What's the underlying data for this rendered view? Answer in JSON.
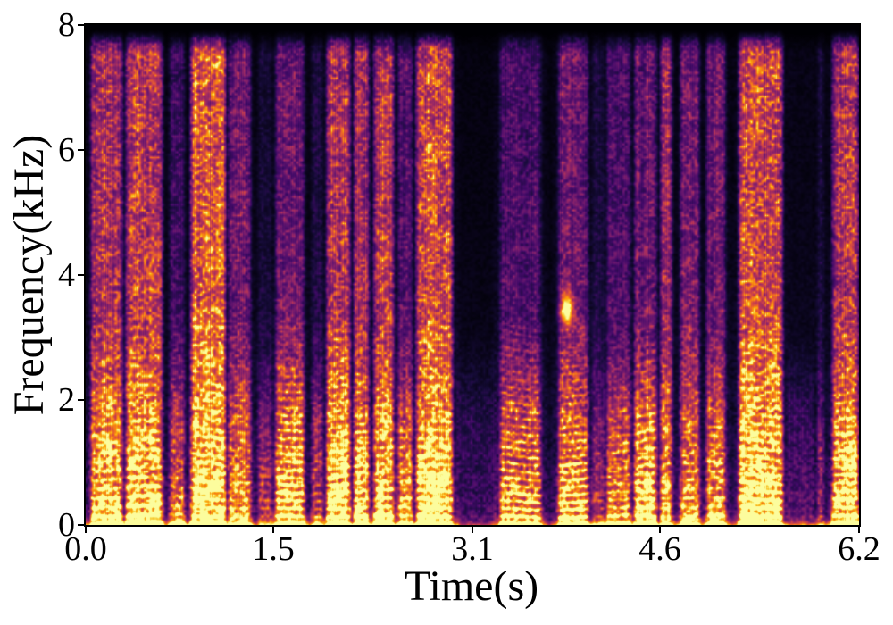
{
  "figure": {
    "xlabel": "Time(s)",
    "ylabel": "Frequency(kHz)",
    "x_tick_labels": [
      "0.0",
      "1.5",
      "3.1",
      "4.6",
      "6.2"
    ],
    "y_tick_labels": [
      "8",
      "6",
      "4",
      "2",
      "0"
    ],
    "axis_color": "#000000",
    "background_color": "#ffffff"
  },
  "chart_data": {
    "type": "heatmap",
    "subtype": "speech-spectrogram",
    "title": "",
    "xlabel": "Time(s)",
    "ylabel": "Frequency(kHz)",
    "xlim": [
      0.0,
      6.2
    ],
    "ylim": [
      0,
      8
    ],
    "x_ticks": [
      0.0,
      1.5,
      3.1,
      4.6,
      6.2
    ],
    "y_ticks": [
      0,
      2,
      4,
      6,
      8
    ],
    "grid": false,
    "legend": null,
    "colormap": "inferno",
    "colormap_stops": [
      [
        0,
        0,
        4
      ],
      [
        22,
        11,
        57
      ],
      [
        66,
        10,
        104
      ],
      [
        106,
        23,
        110
      ],
      [
        147,
        38,
        103
      ],
      [
        188,
        55,
        84
      ],
      [
        221,
        81,
        58
      ],
      [
        243,
        120,
        25
      ],
      [
        252,
        165,
        10
      ],
      [
        246,
        215,
        70
      ],
      [
        252,
        255,
        164
      ]
    ],
    "f0_khz": 0.135,
    "noise_seed": 42,
    "highlight": {
      "t": 3.86,
      "f": 3.45,
      "amp": 0.9
    },
    "speech_segments": [
      [
        0.04,
        0.29,
        0.75,
        0.8,
        0.7
      ],
      [
        0.32,
        0.61,
        0.8,
        0.9,
        0.75
      ],
      [
        0.67,
        0.79,
        0.45,
        0.5,
        0.4
      ],
      [
        0.84,
        1.12,
        0.9,
        0.85,
        0.85
      ],
      [
        1.14,
        1.32,
        0.6,
        0.5,
        0.55
      ],
      [
        1.38,
        1.49,
        0.3,
        0.3,
        0.25
      ],
      [
        1.52,
        1.75,
        0.65,
        1.0,
        0.5
      ],
      [
        1.81,
        1.9,
        0.35,
        0.4,
        0.3
      ],
      [
        1.93,
        2.12,
        0.8,
        1.0,
        0.7
      ],
      [
        2.15,
        2.27,
        0.75,
        0.9,
        0.65
      ],
      [
        2.31,
        2.47,
        0.8,
        0.7,
        0.75
      ],
      [
        2.5,
        2.62,
        0.55,
        0.6,
        0.45
      ],
      [
        2.65,
        2.94,
        0.85,
        0.9,
        0.8
      ],
      [
        2.97,
        3.3,
        0.1,
        0.0,
        0.06
      ],
      [
        3.32,
        3.65,
        0.5,
        0.9,
        0.45
      ],
      [
        3.79,
        4.03,
        0.6,
        0.95,
        0.55
      ],
      [
        4.06,
        4.16,
        0.3,
        0.3,
        0.3
      ],
      [
        4.18,
        4.37,
        0.5,
        0.6,
        0.45
      ],
      [
        4.4,
        4.58,
        0.65,
        0.9,
        0.5
      ],
      [
        4.61,
        4.7,
        0.7,
        0.4,
        0.7
      ],
      [
        4.77,
        4.92,
        0.6,
        0.5,
        0.6
      ],
      [
        4.98,
        5.13,
        0.6,
        0.7,
        0.55
      ],
      [
        5.24,
        5.59,
        0.85,
        1.0,
        0.8
      ],
      [
        5.63,
        5.84,
        0.15,
        0.1,
        0.1
      ],
      [
        5.87,
        5.92,
        0.3,
        0.2,
        0.3
      ],
      [
        5.99,
        6.2,
        0.75,
        0.9,
        0.7
      ]
    ]
  }
}
